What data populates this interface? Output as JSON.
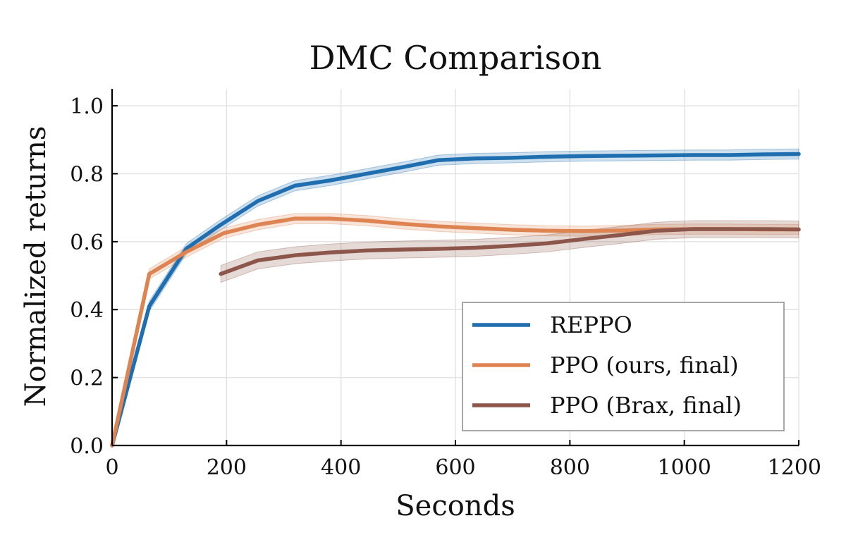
{
  "chart_data": {
    "type": "line",
    "title": "DMC Comparison",
    "xlabel": "Seconds",
    "ylabel": "Normalized returns",
    "xlim": [
      0,
      1200
    ],
    "ylim": [
      0,
      1.05
    ],
    "xticks": [
      0,
      200,
      400,
      600,
      800,
      1000,
      1200
    ],
    "xtick_labels": [
      "0",
      "200",
      "400",
      "600",
      "800",
      "1000",
      "1200"
    ],
    "yticks": [
      0,
      0.2,
      0.4,
      0.6,
      0.8,
      1.0
    ],
    "ytick_labels": [
      "0.0",
      "0.2",
      "0.4",
      "0.6",
      "0.8",
      "1.0"
    ],
    "grid": true,
    "legend_position": "bottom-right",
    "series": [
      {
        "name": "REPPO",
        "color": "#1f6fb0",
        "band": 0.015,
        "x": [
          0,
          65,
          130,
          190,
          255,
          320,
          380,
          445,
          510,
          570,
          635,
          700,
          760,
          825,
          890,
          950,
          1015,
          1080,
          1140,
          1200
        ],
        "y": [
          0.0,
          0.41,
          0.58,
          0.65,
          0.72,
          0.765,
          0.78,
          0.8,
          0.82,
          0.84,
          0.845,
          0.847,
          0.85,
          0.852,
          0.853,
          0.854,
          0.855,
          0.855,
          0.857,
          0.858
        ]
      },
      {
        "name": "PPO (ours, final)",
        "color": "#dd8452",
        "band": 0.015,
        "x": [
          0,
          65,
          130,
          195,
          255,
          320,
          380,
          445,
          510,
          570,
          635,
          700,
          760,
          825,
          890,
          950,
          1015,
          1080,
          1140,
          1200
        ],
        "y": [
          0.0,
          0.505,
          0.57,
          0.625,
          0.65,
          0.668,
          0.668,
          0.662,
          0.652,
          0.645,
          0.64,
          0.635,
          0.632,
          0.631,
          0.633,
          0.636,
          0.637,
          0.637,
          0.636,
          0.636
        ]
      },
      {
        "name": "PPO (Brax, final)",
        "color": "#8c564b",
        "band": 0.025,
        "x": [
          190,
          255,
          320,
          380,
          445,
          510,
          570,
          635,
          700,
          760,
          825,
          890,
          950,
          1015,
          1080,
          1140,
          1200
        ],
        "y": [
          0.505,
          0.545,
          0.56,
          0.568,
          0.574,
          0.577,
          0.579,
          0.582,
          0.588,
          0.595,
          0.608,
          0.62,
          0.632,
          0.637,
          0.637,
          0.637,
          0.636
        ]
      }
    ]
  }
}
